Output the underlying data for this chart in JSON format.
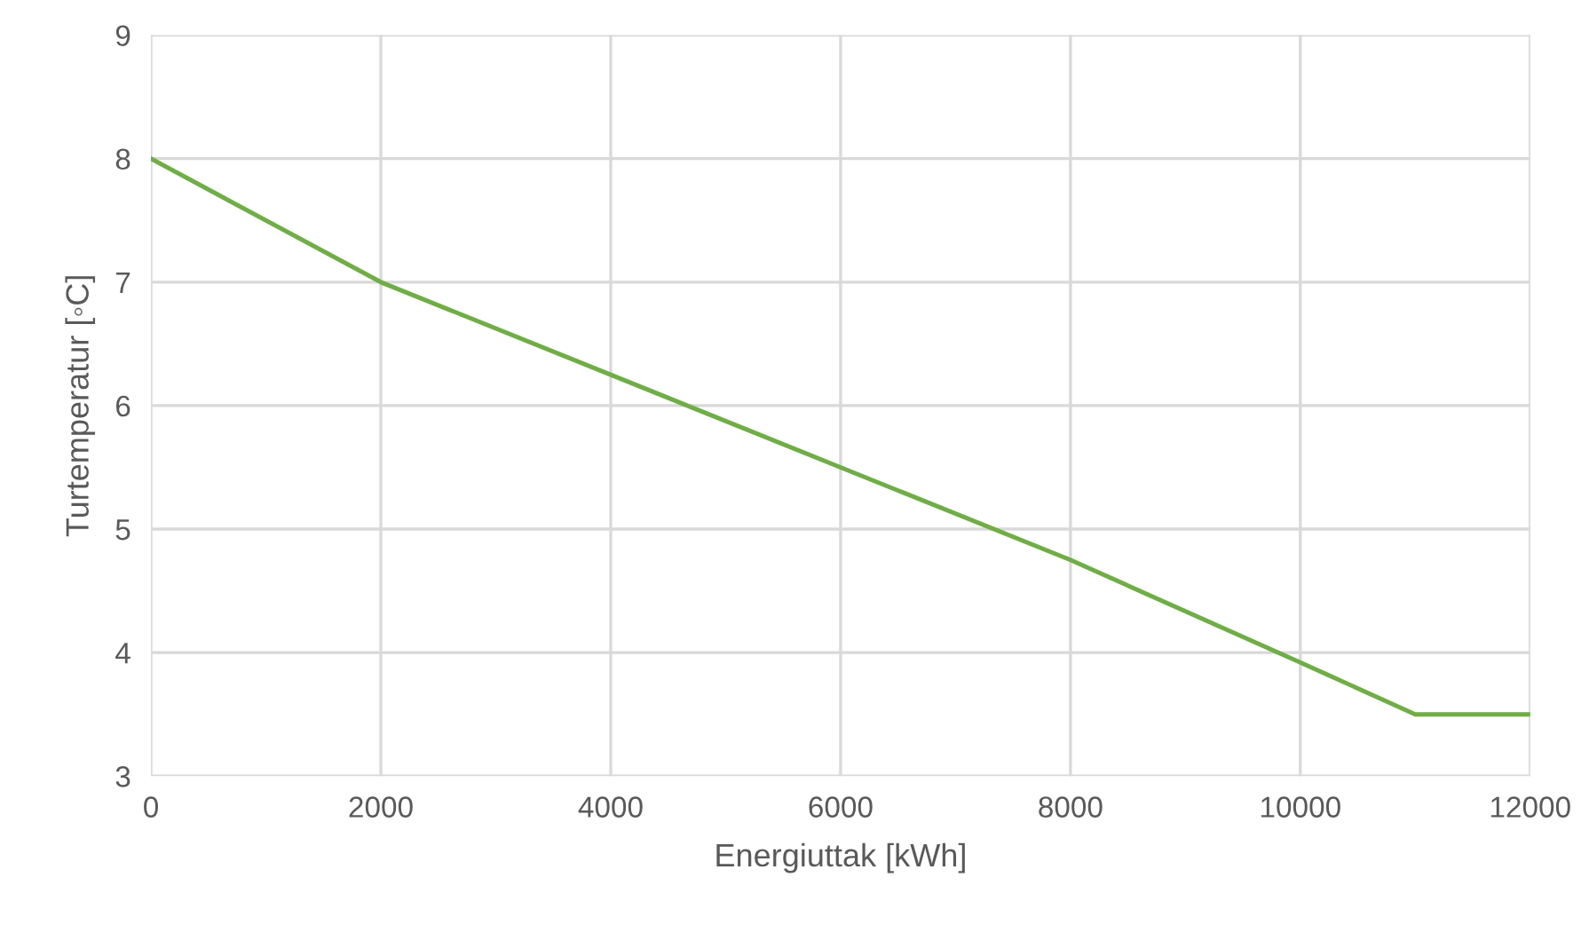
{
  "chart_data": {
    "type": "line",
    "xlabel": "Energiuttak [kWh]",
    "ylabel": "Turtemperatur [◦C]",
    "x": [
      0,
      2000,
      4000,
      6000,
      8000,
      10000,
      11000,
      12000
    ],
    "series": [
      {
        "color": "#70ad47",
        "values": [
          8,
          7,
          6.25,
          5.5,
          4.75,
          3.92,
          3.5,
          3.5
        ]
      }
    ],
    "xlim": [
      0,
      12000
    ],
    "ylim": [
      3,
      9
    ],
    "xticks": [
      0,
      2000,
      4000,
      6000,
      8000,
      10000,
      12000
    ],
    "yticks": [
      3,
      4,
      5,
      6,
      7,
      8,
      9
    ],
    "grid": true,
    "legend": false
  }
}
